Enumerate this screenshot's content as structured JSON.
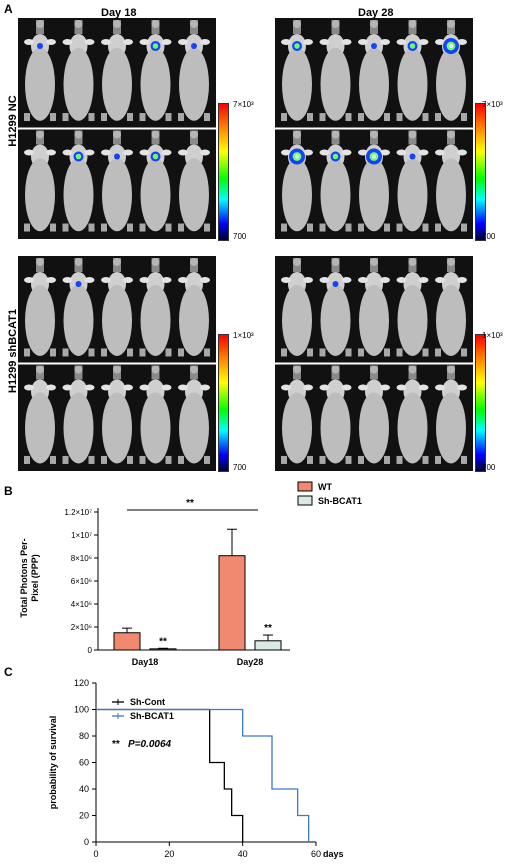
{
  "panel_a": {
    "letter": "A",
    "day_labels": [
      "Day 18",
      "Day 28"
    ],
    "row_labels": [
      "H1299 NC",
      "H1299  shBCAT1"
    ],
    "colorbar_nc": {
      "max": "7×10³",
      "min": "700"
    },
    "colorbar_sh": {
      "max": "1×10³",
      "min": "700"
    },
    "colors": {
      "background": "#111111",
      "mouse": "#cfcfcf",
      "signal_blue": "#0033ff",
      "signal_green": "#66ff66"
    }
  },
  "panel_b": {
    "letter": "B",
    "chart_data": {
      "type": "bar",
      "categories": [
        "Day18",
        "Day28"
      ],
      "series": [
        {
          "name": "WT",
          "values": [
            1500000.0,
            8200000.0
          ],
          "errors": [
            400000.0,
            2300000.0
          ],
          "color": "#f0896f"
        },
        {
          "name": "Sh-BCAT1",
          "values": [
            100000.0,
            800000.0
          ],
          "errors": [
            50000.0,
            500000.0
          ],
          "color": "#dbe9e4"
        }
      ],
      "ylabel": "Total Photons Per-Pixel (PPP)",
      "ylim": [
        0,
        12000000.0
      ],
      "yticks": [
        "0",
        "2×10⁶",
        "4×10⁶",
        "6×10⁶",
        "8×10⁶",
        "1×10⁷",
        "1.2×10⁷"
      ],
      "significance": {
        "bracket": "**",
        "sh_day18": "**",
        "sh_day28": "**"
      },
      "legend_position": "top-right"
    }
  },
  "panel_c": {
    "letter": "C",
    "chart_data": {
      "type": "line",
      "subtype": "kaplan-meier",
      "xlabel": "days",
      "ylabel": "probability of survival",
      "xlim": [
        0,
        60
      ],
      "ylim": [
        0,
        120
      ],
      "xticks": [
        "0",
        "20",
        "40",
        "60"
      ],
      "yticks": [
        "0",
        "20",
        "40",
        "60",
        "80",
        "100",
        "120"
      ],
      "series": [
        {
          "name": "Sh-Cont",
          "color": "#000000",
          "x": [
            0,
            31,
            35,
            37,
            40
          ],
          "y": [
            100,
            60,
            40,
            20,
            0
          ]
        },
        {
          "name": "Sh-BCAT1",
          "color": "#3c7ac8",
          "x": [
            0,
            40,
            48,
            55,
            58
          ],
          "y": [
            100,
            80,
            40,
            20,
            0
          ]
        }
      ],
      "annotation": {
        "stars": "**",
        "pvalue": "P=0.0064"
      },
      "legend_position": "top-left"
    }
  }
}
